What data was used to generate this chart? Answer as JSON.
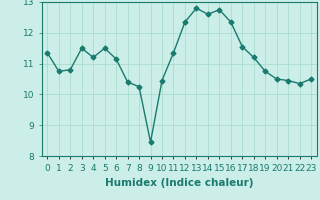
{
  "x": [
    0,
    1,
    2,
    3,
    4,
    5,
    6,
    7,
    8,
    9,
    10,
    11,
    12,
    13,
    14,
    15,
    16,
    17,
    18,
    19,
    20,
    21,
    22,
    23
  ],
  "y": [
    11.35,
    10.75,
    10.8,
    11.5,
    11.2,
    11.5,
    11.15,
    10.4,
    10.25,
    8.45,
    10.45,
    11.35,
    12.35,
    12.8,
    12.6,
    12.75,
    12.35,
    11.55,
    11.2,
    10.75,
    10.5,
    10.45,
    10.35,
    10.5
  ],
  "line_color": "#1a7a6e",
  "marker": "D",
  "marker_size": 2.5,
  "bg_color": "#cceee8",
  "grid_color": "#aaddcc",
  "xlabel": "Humidex (Indice chaleur)",
  "ylim": [
    8,
    13
  ],
  "xlim": [
    -0.5,
    23.5
  ],
  "yticks": [
    8,
    9,
    10,
    11,
    12,
    13
  ],
  "xlabel_fontsize": 7.5,
  "tick_fontsize": 6.5,
  "linewidth": 1.0
}
